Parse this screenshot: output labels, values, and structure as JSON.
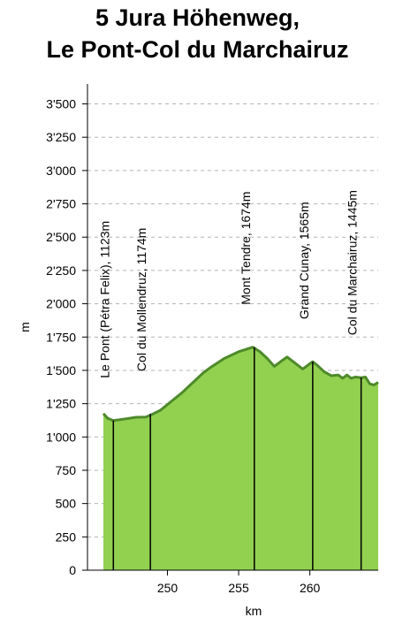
{
  "chart_data": {
    "type": "area",
    "title_line1": "5 Jura Höhenweg,",
    "title_line2": "Le Pont-Col du Marchairuz",
    "xlabel": "km",
    "ylabel": "m",
    "xlim": [
      245.5,
      264.8
    ],
    "ylim": [
      0,
      3550
    ],
    "x_ticks": [
      250,
      255,
      260
    ],
    "x_tick_labels": [
      "250",
      "255",
      "260"
    ],
    "y_ticks": [
      0,
      250,
      500,
      750,
      1000,
      1250,
      1500,
      1750,
      2000,
      2250,
      2500,
      2750,
      3000,
      3250,
      3500
    ],
    "y_tick_labels": [
      "0",
      "250",
      "500",
      "750",
      "1'000",
      "1'250",
      "1'500",
      "1'750",
      "2'000",
      "2'250",
      "2'500",
      "2'750",
      "3'000",
      "3'250",
      "3'500"
    ],
    "grid": "horizontal dashed",
    "fill_color": "#92d050",
    "line_color": "#4e8a2a",
    "profile": {
      "x": [
        245.5,
        245.8,
        246.2,
        247.0,
        247.8,
        248.5,
        249.0,
        249.5,
        250.3,
        251.0,
        251.5,
        252.0,
        252.5,
        253.0,
        254.0,
        255.0,
        256.0,
        256.5,
        257.0,
        257.5,
        258.0,
        258.4,
        258.9,
        259.5,
        260.0,
        260.2,
        260.5,
        261.0,
        261.5,
        262.0,
        262.3,
        262.6,
        262.9,
        263.2,
        263.6,
        263.9,
        264.2,
        264.5,
        264.8
      ],
      "y": [
        1175,
        1140,
        1123,
        1135,
        1148,
        1150,
        1174,
        1200,
        1270,
        1330,
        1380,
        1430,
        1480,
        1520,
        1590,
        1640,
        1674,
        1640,
        1590,
        1530,
        1570,
        1600,
        1560,
        1510,
        1550,
        1565,
        1540,
        1490,
        1460,
        1465,
        1440,
        1465,
        1440,
        1450,
        1445,
        1450,
        1400,
        1390,
        1410
      ]
    },
    "waypoints": [
      {
        "label": "Le Pont (Pétra Felix), 1123m",
        "x": 246.2,
        "y": 1123
      },
      {
        "label": "Col du Mollendruz, 1174m",
        "x": 248.8,
        "y": 1174
      },
      {
        "label": "Mont Tendre, 1674m",
        "x": 256.1,
        "y": 1674
      },
      {
        "label": "Grand Cunay, 1565m",
        "x": 260.2,
        "y": 1565
      },
      {
        "label": "Col du Marchairuz, 1445m",
        "x": 263.6,
        "y": 1445
      }
    ]
  }
}
